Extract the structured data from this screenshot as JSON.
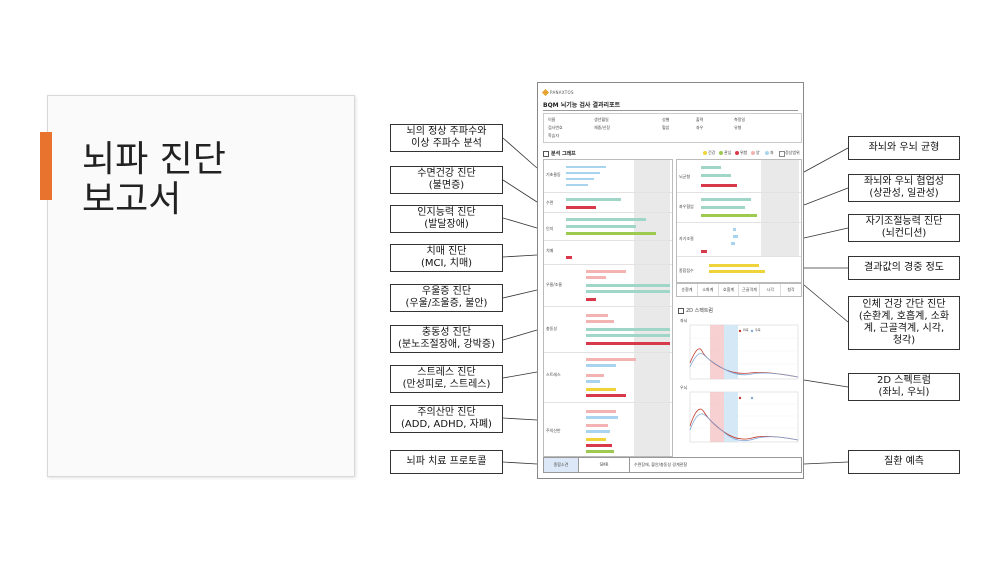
{
  "slide": {
    "title_line1": "뇌파 진단",
    "title_line2": "보고서",
    "accent_color": "#e8732e"
  },
  "callouts_left": [
    "뇌의 정상 주파수와\n이상 주파수 분석",
    "수면건강 진단\n(불면증)",
    "인지능력 진단\n(발달장애)",
    "치매 진단\n(MCI, 치매)",
    "우울증 진단\n(우울/조울증, 불안)",
    "충동성 진단\n(분노조절장애, 강박증)",
    "스트레스 진단\n(만성피로, 스트레스)",
    "주의산만 진단\n(ADD, ADHD, 자폐)",
    "뇌파 치료 프로토콜"
  ],
  "callouts_right": [
    "좌뇌와 우뇌 균형",
    "좌뇌와 우뇌 협업성\n(상관성, 일관성)",
    "자기조절능력 진단\n(뇌컨디션)",
    "결과값의 경중 정도",
    "인체 건강 간단 진단\n(순환계, 호흡계, 소화\n계, 근골격계, 시각,\n청각)",
    "2D 스펙트럼\n(좌뇌, 우뇌)",
    "질환 예측"
  ],
  "report": {
    "brand": "PANAXTOS",
    "title": "BQM 뇌기능 검사 결과리포트",
    "header_labels": [
      "이름",
      "생년월일",
      "성별",
      "출력",
      "측정일",
      "검사번호",
      "학습자",
      "체중/신장",
      "혈압",
      "좌우",
      "유형"
    ],
    "section_title": "분석 그래프",
    "legend": [
      "건강",
      "관심",
      "위험",
      "양",
      "좌",
      "정상범위"
    ],
    "row_labels": [
      "기초율동",
      "수면",
      "인지",
      "치매",
      "우울/조울",
      "충동성",
      "스트레스",
      "주의산만"
    ],
    "right_labels": [
      "뇌균형",
      "좌우협업",
      "자기조절",
      "종합점수"
    ],
    "spectrum_title": "2D 스펙트럼",
    "spectrum_left_label": "좌뇌",
    "spectrum_right_label": "우뇌",
    "spectrum_legend": [
      "좌측",
      "우측"
    ],
    "health_items": [
      "순환계",
      "소화계",
      "호흡계",
      "근골격계",
      "시각",
      "청각"
    ],
    "footer_label": "종합소견",
    "footer_value": "SMR",
    "footer_desc": "수면장애, 불안/충동성 경계관찰"
  }
}
